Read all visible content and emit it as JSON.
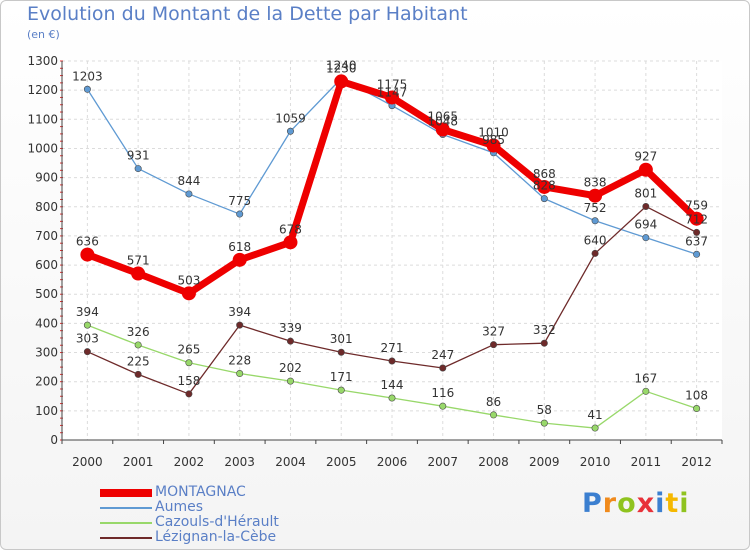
{
  "title": "Evolution du Montant de la Dette par Habitant",
  "unit": "(en €)",
  "logo": {
    "text": "Proxiti",
    "letters": [
      {
        "ch": "P",
        "color": "#3b7fd0"
      },
      {
        "ch": "r",
        "color": "#f08a1c"
      },
      {
        "ch": "o",
        "color": "#8fc31f"
      },
      {
        "ch": "x",
        "color": "#e8323a"
      },
      {
        "ch": "i",
        "color": "#3b7fd0"
      },
      {
        "ch": "t",
        "color": "#f5b800"
      },
      {
        "ch": "i",
        "color": "#8fc31f"
      }
    ]
  },
  "chart_data": {
    "type": "line",
    "title": "Evolution du Montant de la Dette par Habitant",
    "subtitle": "(en €)",
    "x": [
      "2000",
      "2001",
      "2002",
      "2003",
      "2004",
      "2005",
      "2006",
      "2007",
      "2008",
      "2009",
      "2010",
      "2011",
      "2012"
    ],
    "ylim": [
      0,
      1300
    ],
    "yticks": [
      0,
      100,
      200,
      300,
      400,
      500,
      600,
      700,
      800,
      900,
      1000,
      1100,
      1200,
      1300
    ],
    "grid": true,
    "legend_position": "bottom-left",
    "series": [
      {
        "name": "MONTAGNAC",
        "color": "#ee0000",
        "emphasis": true,
        "values": [
          636,
          571,
          503,
          618,
          678,
          1230,
          1175,
          1065,
          1010,
          868,
          838,
          927,
          759
        ]
      },
      {
        "name": "Aumes",
        "color": "#5f9ad3",
        "emphasis": false,
        "values": [
          1203,
          931,
          844,
          775,
          1059,
          1240,
          1147,
          1048,
          985,
          828,
          752,
          694,
          637
        ]
      },
      {
        "name": "Cazouls-d'Hérault",
        "color": "#98d86a",
        "emphasis": false,
        "values": [
          394,
          326,
          265,
          228,
          202,
          171,
          144,
          116,
          86,
          58,
          41,
          167,
          108
        ]
      },
      {
        "name": "Lézignan-la-Cèbe",
        "color": "#6e2a2a",
        "emphasis": false,
        "values": [
          303,
          225,
          158,
          394,
          339,
          301,
          271,
          247,
          327,
          332,
          640,
          801,
          712
        ]
      }
    ]
  }
}
